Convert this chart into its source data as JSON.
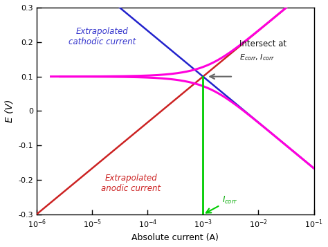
{
  "xlim": [
    1e-06,
    0.1
  ],
  "ylim": [
    -0.3,
    0.3
  ],
  "xlabel": "Absolute current (A)",
  "ylabel": "E (V)",
  "E_corr": 0.1,
  "I_corr_log": -3,
  "background_color": "#ffffff",
  "cathodic_color": "#2222cc",
  "anodic_color": "#cc2222",
  "magenta_color": "#ff00dd",
  "green_color": "#00cc00",
  "gray_arrow_color": "#666666",
  "text_color_cathodic": "#3333cc",
  "text_color_anodic": "#cc2222",
  "text_color_intersect": "#111111",
  "text_color_Icorr": "#00aa00",
  "cathodic_label": "Extrapolated\ncathodic current",
  "anodic_label": "Extrapolated\nanodic current",
  "intersect_label": "Intersect at",
  "Ecorr_Icorr_label": "$E_{corr}$, $I_{corr}$",
  "Icorr_label": "$I_{corr}$",
  "beta_a": 0.133,
  "beta_c": 0.133
}
